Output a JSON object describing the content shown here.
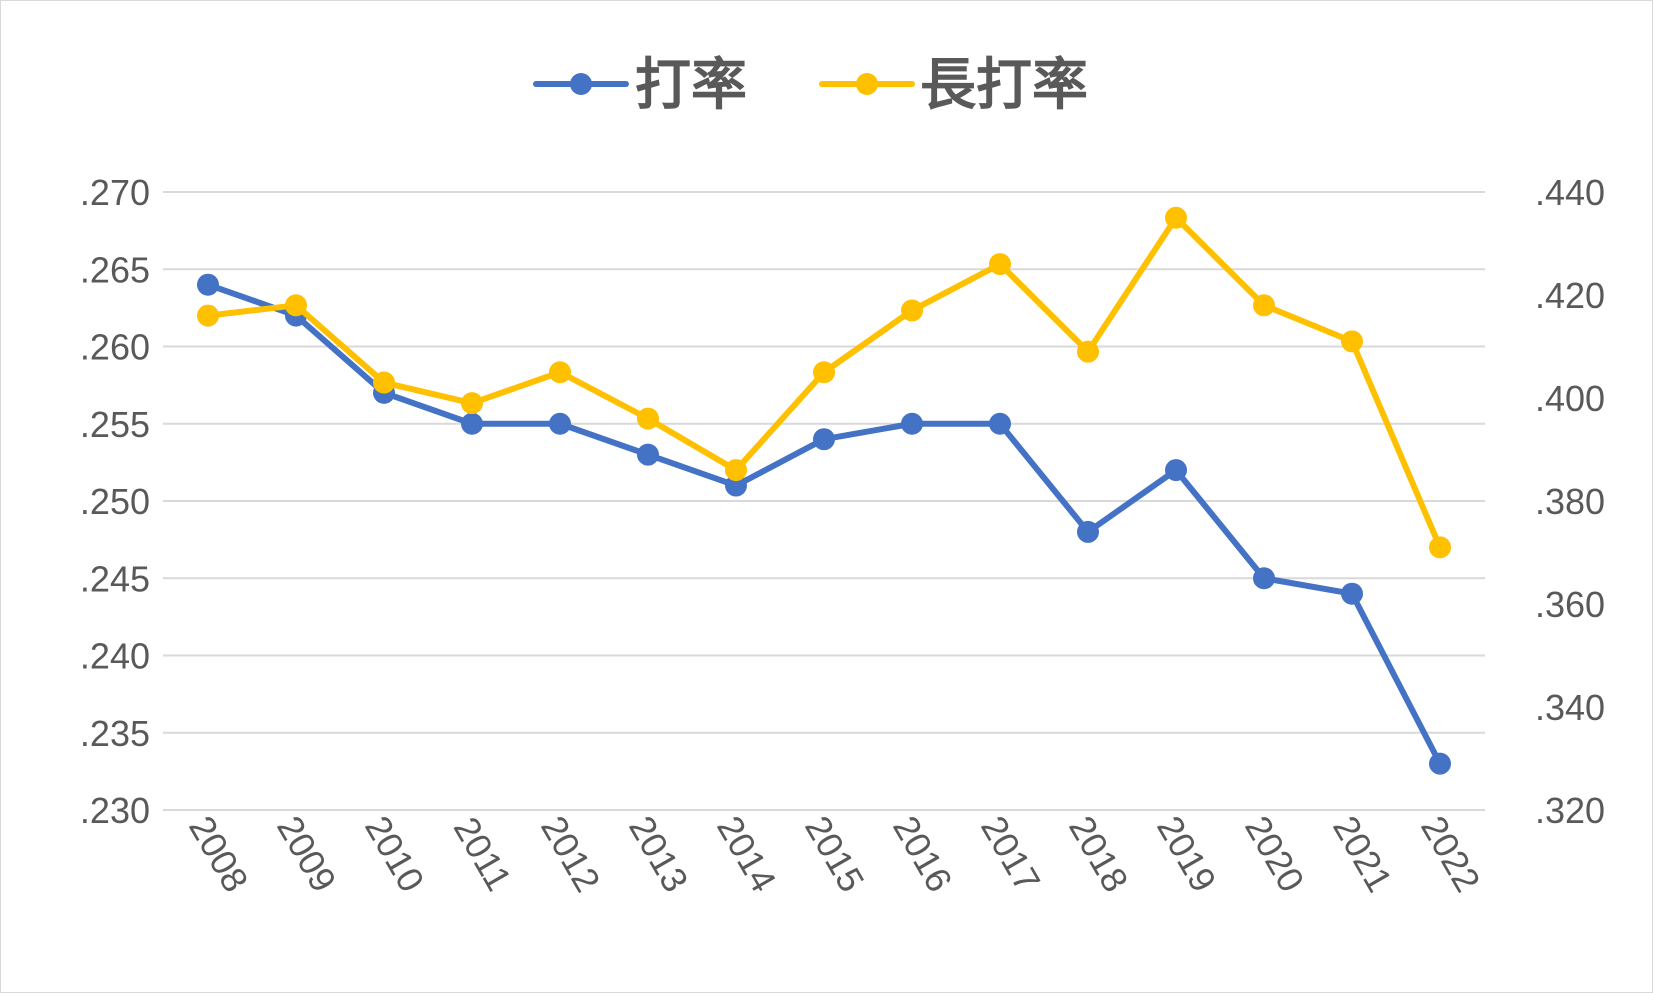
{
  "chart_data": {
    "type": "line",
    "categories": [
      "2008",
      "2009",
      "2010",
      "2011",
      "2012",
      "2013",
      "2014",
      "2015",
      "2016",
      "2017",
      "2018",
      "2019",
      "2020",
      "2021",
      "2022"
    ],
    "series": [
      {
        "name": "打率",
        "axis": "left",
        "color": "#4472C4",
        "values": [
          0.264,
          0.262,
          0.257,
          0.255,
          0.255,
          0.253,
          0.251,
          0.254,
          0.255,
          0.255,
          0.248,
          0.252,
          0.245,
          0.244,
          0.233
        ]
      },
      {
        "name": "長打率",
        "axis": "right",
        "color": "#FFC000",
        "values": [
          0.416,
          0.418,
          0.403,
          0.399,
          0.405,
          0.396,
          0.386,
          0.405,
          0.417,
          0.426,
          0.409,
          0.435,
          0.418,
          0.411,
          0.371
        ]
      }
    ],
    "y_left": {
      "min": 0.23,
      "max": 0.27,
      "ticks": [
        ".270",
        ".265",
        ".260",
        ".255",
        ".250",
        ".245",
        ".240",
        ".235",
        ".230"
      ]
    },
    "y_right": {
      "min": 0.32,
      "max": 0.44,
      "ticks": [
        ".440",
        ".420",
        ".400",
        ".380",
        ".360",
        ".340",
        ".320"
      ]
    },
    "grid": true,
    "legend_position": "top",
    "x_label_rotation": "rotated 60 degrees clockwise"
  }
}
